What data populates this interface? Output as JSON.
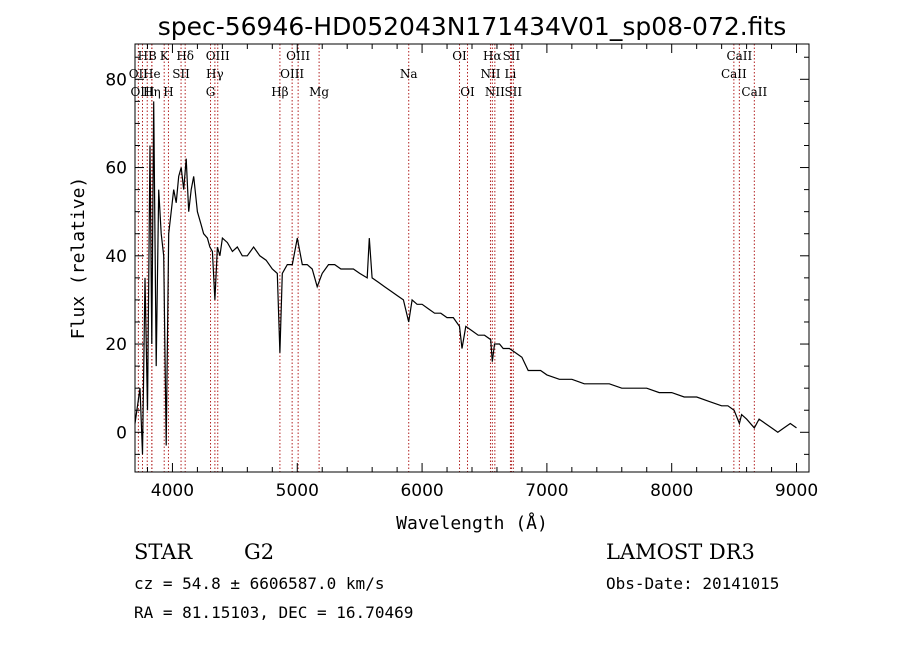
{
  "chart_data": {
    "type": "line",
    "title": "spec-56946-HD052043N171434V01_sp08-072.fits",
    "xlabel": "Wavelength (Å)",
    "ylabel": "Flux (relative)",
    "xlim": [
      3700,
      9100
    ],
    "ylim": [
      -9,
      88
    ],
    "xticks": [
      4000,
      5000,
      6000,
      7000,
      8000,
      9000
    ],
    "yticks": [
      0,
      20,
      40,
      60,
      80
    ],
    "line_color": "#000000",
    "marker_color": "#b22222",
    "series": [
      {
        "name": "spectrum",
        "x": [
          3700,
          3740,
          3760,
          3780,
          3800,
          3820,
          3835,
          3850,
          3870,
          3890,
          3910,
          3930,
          3950,
          3970,
          3990,
          4010,
          4030,
          4050,
          4070,
          4090,
          4110,
          4130,
          4150,
          4170,
          4200,
          4230,
          4250,
          4280,
          4300,
          4320,
          4340,
          4360,
          4380,
          4400,
          4440,
          4480,
          4520,
          4560,
          4600,
          4650,
          4700,
          4750,
          4800,
          4840,
          4861,
          4880,
          4920,
          4960,
          5000,
          5040,
          5080,
          5120,
          5160,
          5200,
          5250,
          5300,
          5350,
          5400,
          5450,
          5500,
          5560,
          5577,
          5600,
          5650,
          5700,
          5750,
          5800,
          5850,
          5893,
          5920,
          5960,
          6000,
          6050,
          6100,
          6150,
          6200,
          6250,
          6300,
          6320,
          6350,
          6400,
          6450,
          6500,
          6550,
          6563,
          6580,
          6620,
          6650,
          6700,
          6750,
          6800,
          6850,
          6900,
          6950,
          7000,
          7100,
          7200,
          7300,
          7400,
          7500,
          7600,
          7700,
          7800,
          7900,
          8000,
          8100,
          8200,
          8300,
          8400,
          8450,
          8500,
          8542,
          8560,
          8600,
          8662,
          8700,
          8750,
          8800,
          8850,
          8900,
          8950,
          9000
        ],
        "y": [
          2,
          10,
          -5,
          35,
          5,
          65,
          20,
          75,
          15,
          55,
          45,
          40,
          -3,
          45,
          50,
          55,
          52,
          58,
          60,
          55,
          62,
          50,
          55,
          58,
          50,
          47,
          45,
          44,
          42,
          41,
          30,
          42,
          40,
          44,
          43,
          41,
          42,
          40,
          40,
          42,
          40,
          39,
          37,
          36,
          18,
          36,
          38,
          38,
          44,
          38,
          38,
          37,
          33,
          36,
          38,
          38,
          37,
          37,
          37,
          36,
          35,
          44,
          35,
          34,
          33,
          32,
          31,
          30,
          25,
          30,
          29,
          29,
          28,
          27,
          27,
          26,
          26,
          24,
          19,
          24,
          23,
          22,
          22,
          21,
          16,
          20,
          20,
          19,
          19,
          18,
          17,
          14,
          14,
          14,
          13,
          12,
          12,
          11,
          11,
          11,
          10,
          10,
          10,
          9,
          9,
          8,
          8,
          7,
          6,
          6,
          5,
          2,
          4,
          3,
          1,
          3,
          2,
          1,
          0,
          1,
          2,
          1
        ]
      }
    ],
    "lines": [
      {
        "name": "HB",
        "wavelength": 3798,
        "row": 0
      },
      {
        "name": "OII",
        "wavelength": 3727,
        "row": 1
      },
      {
        "name": "OIII",
        "wavelength": 3760,
        "row": 2
      },
      {
        "name": "He",
        "wavelength": 3835,
        "row": 1
      },
      {
        "name": "Hη",
        "wavelength": 3835,
        "row": 2
      },
      {
        "name": "K",
        "wavelength": 3934,
        "row": 0
      },
      {
        "name": "SII",
        "wavelength": 4069,
        "row": 1
      },
      {
        "name": "H",
        "wavelength": 3968,
        "row": 2
      },
      {
        "name": "Hδ",
        "wavelength": 4102,
        "row": 0
      },
      {
        "name": "OIII",
        "wavelength": 4363,
        "row": 0
      },
      {
        "name": "Hγ",
        "wavelength": 4340,
        "row": 1
      },
      {
        "name": "G",
        "wavelength": 4305,
        "row": 2
      },
      {
        "name": "Hβ",
        "wavelength": 4861,
        "row": 2
      },
      {
        "name": "OIII",
        "wavelength": 4959,
        "row": 1
      },
      {
        "name": "OIII",
        "wavelength": 5007,
        "row": 0
      },
      {
        "name": "Mg",
        "wavelength": 5175,
        "row": 2
      },
      {
        "name": "Na",
        "wavelength": 5893,
        "row": 1
      },
      {
        "name": "OI",
        "wavelength": 6300,
        "row": 0
      },
      {
        "name": "OI",
        "wavelength": 6364,
        "row": 2
      },
      {
        "name": "NII",
        "wavelength": 6548,
        "row": 1
      },
      {
        "name": "Hα",
        "wavelength": 6563,
        "row": 0
      },
      {
        "name": "NII",
        "wavelength": 6583,
        "row": 2
      },
      {
        "name": "Li",
        "wavelength": 6708,
        "row": 1
      },
      {
        "name": "SII",
        "wavelength": 6716,
        "row": 0
      },
      {
        "name": "SII",
        "wavelength": 6731,
        "row": 2
      },
      {
        "name": "CaII",
        "wavelength": 8498,
        "row": 1
      },
      {
        "name": "CaII",
        "wavelength": 8542,
        "row": 0
      },
      {
        "name": "CaII",
        "wavelength": 8662,
        "row": 2
      }
    ]
  },
  "info": {
    "object_class": "STAR",
    "subclass": "G2",
    "survey": "LAMOST DR3",
    "cz": "cz = 54.8 ± 6606587.0 km/s",
    "obs_date": "Obs-Date: 20141015",
    "coords": "RA =  81.15103, DEC =  16.70469"
  }
}
